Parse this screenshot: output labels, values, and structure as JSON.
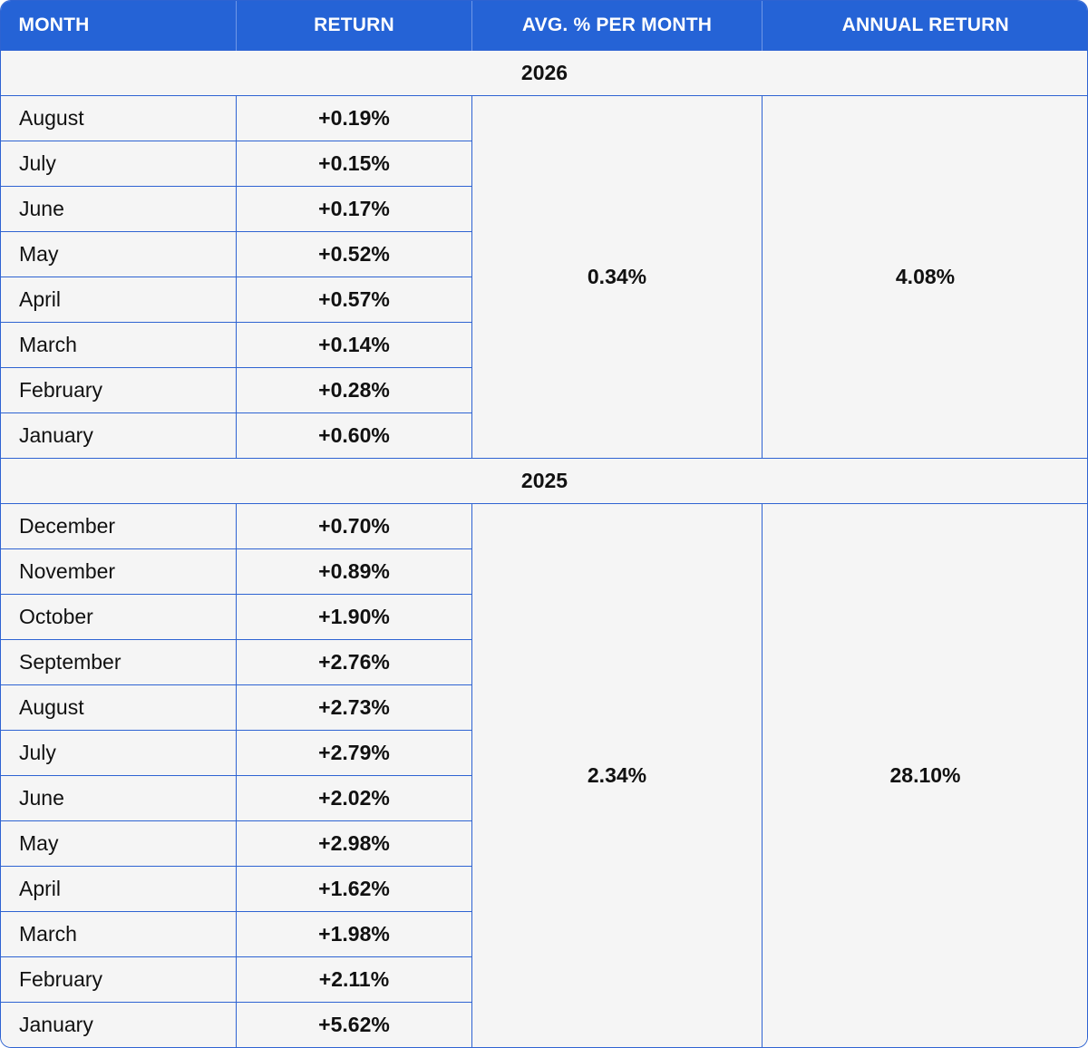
{
  "headers": {
    "month": "MONTH",
    "return": "RETURN",
    "avg": "AVG. % PER MONTH",
    "annual": "ANNUAL RETURN"
  },
  "years": [
    {
      "year": "2026",
      "avg": "0.34%",
      "annual": "4.08%",
      "rows": [
        {
          "month": "August",
          "return": "+0.19%"
        },
        {
          "month": "July",
          "return": "+0.15%"
        },
        {
          "month": "June",
          "return": "+0.17%"
        },
        {
          "month": "May",
          "return": "+0.52%"
        },
        {
          "month": "April",
          "return": "+0.57%"
        },
        {
          "month": "March",
          "return": "+0.14%"
        },
        {
          "month": "February",
          "return": "+0.28%"
        },
        {
          "month": "January",
          "return": "+0.60%"
        }
      ]
    },
    {
      "year": "2025",
      "avg": "2.34%",
      "annual": "28.10%",
      "rows": [
        {
          "month": "December",
          "return": "+0.70%"
        },
        {
          "month": "November",
          "return": "+0.89%"
        },
        {
          "month": "October",
          "return": "+1.90%"
        },
        {
          "month": "September",
          "return": "+2.76%"
        },
        {
          "month": "August",
          "return": "+2.73%"
        },
        {
          "month": "July",
          "return": "+2.79%"
        },
        {
          "month": "June",
          "return": "+2.02%"
        },
        {
          "month": "May",
          "return": "+2.98%"
        },
        {
          "month": "April",
          "return": "+1.62%"
        },
        {
          "month": "March",
          "return": "+1.98%"
        },
        {
          "month": "February",
          "return": "+2.11%"
        },
        {
          "month": "January",
          "return": "+5.62%"
        }
      ]
    }
  ]
}
